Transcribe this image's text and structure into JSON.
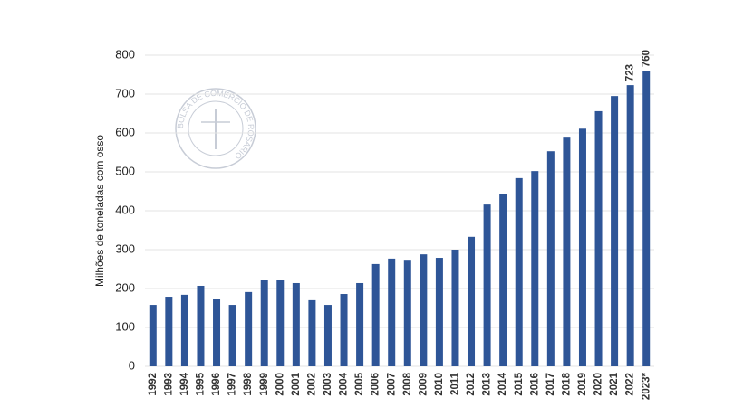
{
  "chart_data": {
    "type": "bar",
    "y_label": "Milhões de toneladas com osso",
    "watermark": "BOLSA DE COMERCIO DE ROSARIO",
    "categories": [
      "1992",
      "1993",
      "1994",
      "1995",
      "1996",
      "1997",
      "1998",
      "1999",
      "2000",
      "2001",
      "2002",
      "2003",
      "2004",
      "2005",
      "2006",
      "2007",
      "2008",
      "2009",
      "2010",
      "2011",
      "2012",
      "2013",
      "2014",
      "2015",
      "2016",
      "2017",
      "2018",
      "2019",
      "2020",
      "2021",
      "2022",
      "2023*"
    ],
    "values": [
      158,
      179,
      184,
      207,
      174,
      158,
      191,
      223,
      223,
      214,
      170,
      158,
      186,
      214,
      263,
      277,
      274,
      288,
      279,
      300,
      333,
      416,
      442,
      484,
      502,
      553,
      588,
      611,
      656,
      695,
      723,
      760
    ],
    "value_labels": [
      null,
      null,
      null,
      null,
      null,
      null,
      null,
      null,
      null,
      null,
      null,
      null,
      null,
      null,
      null,
      null,
      null,
      null,
      null,
      null,
      null,
      null,
      null,
      null,
      null,
      null,
      null,
      null,
      null,
      null,
      "723",
      "760"
    ],
    "color": "#2e5597",
    "ylim": [
      0,
      800
    ],
    "yticks": [
      0,
      100,
      200,
      300,
      400,
      500,
      600,
      700,
      800
    ],
    "grid": true
  }
}
